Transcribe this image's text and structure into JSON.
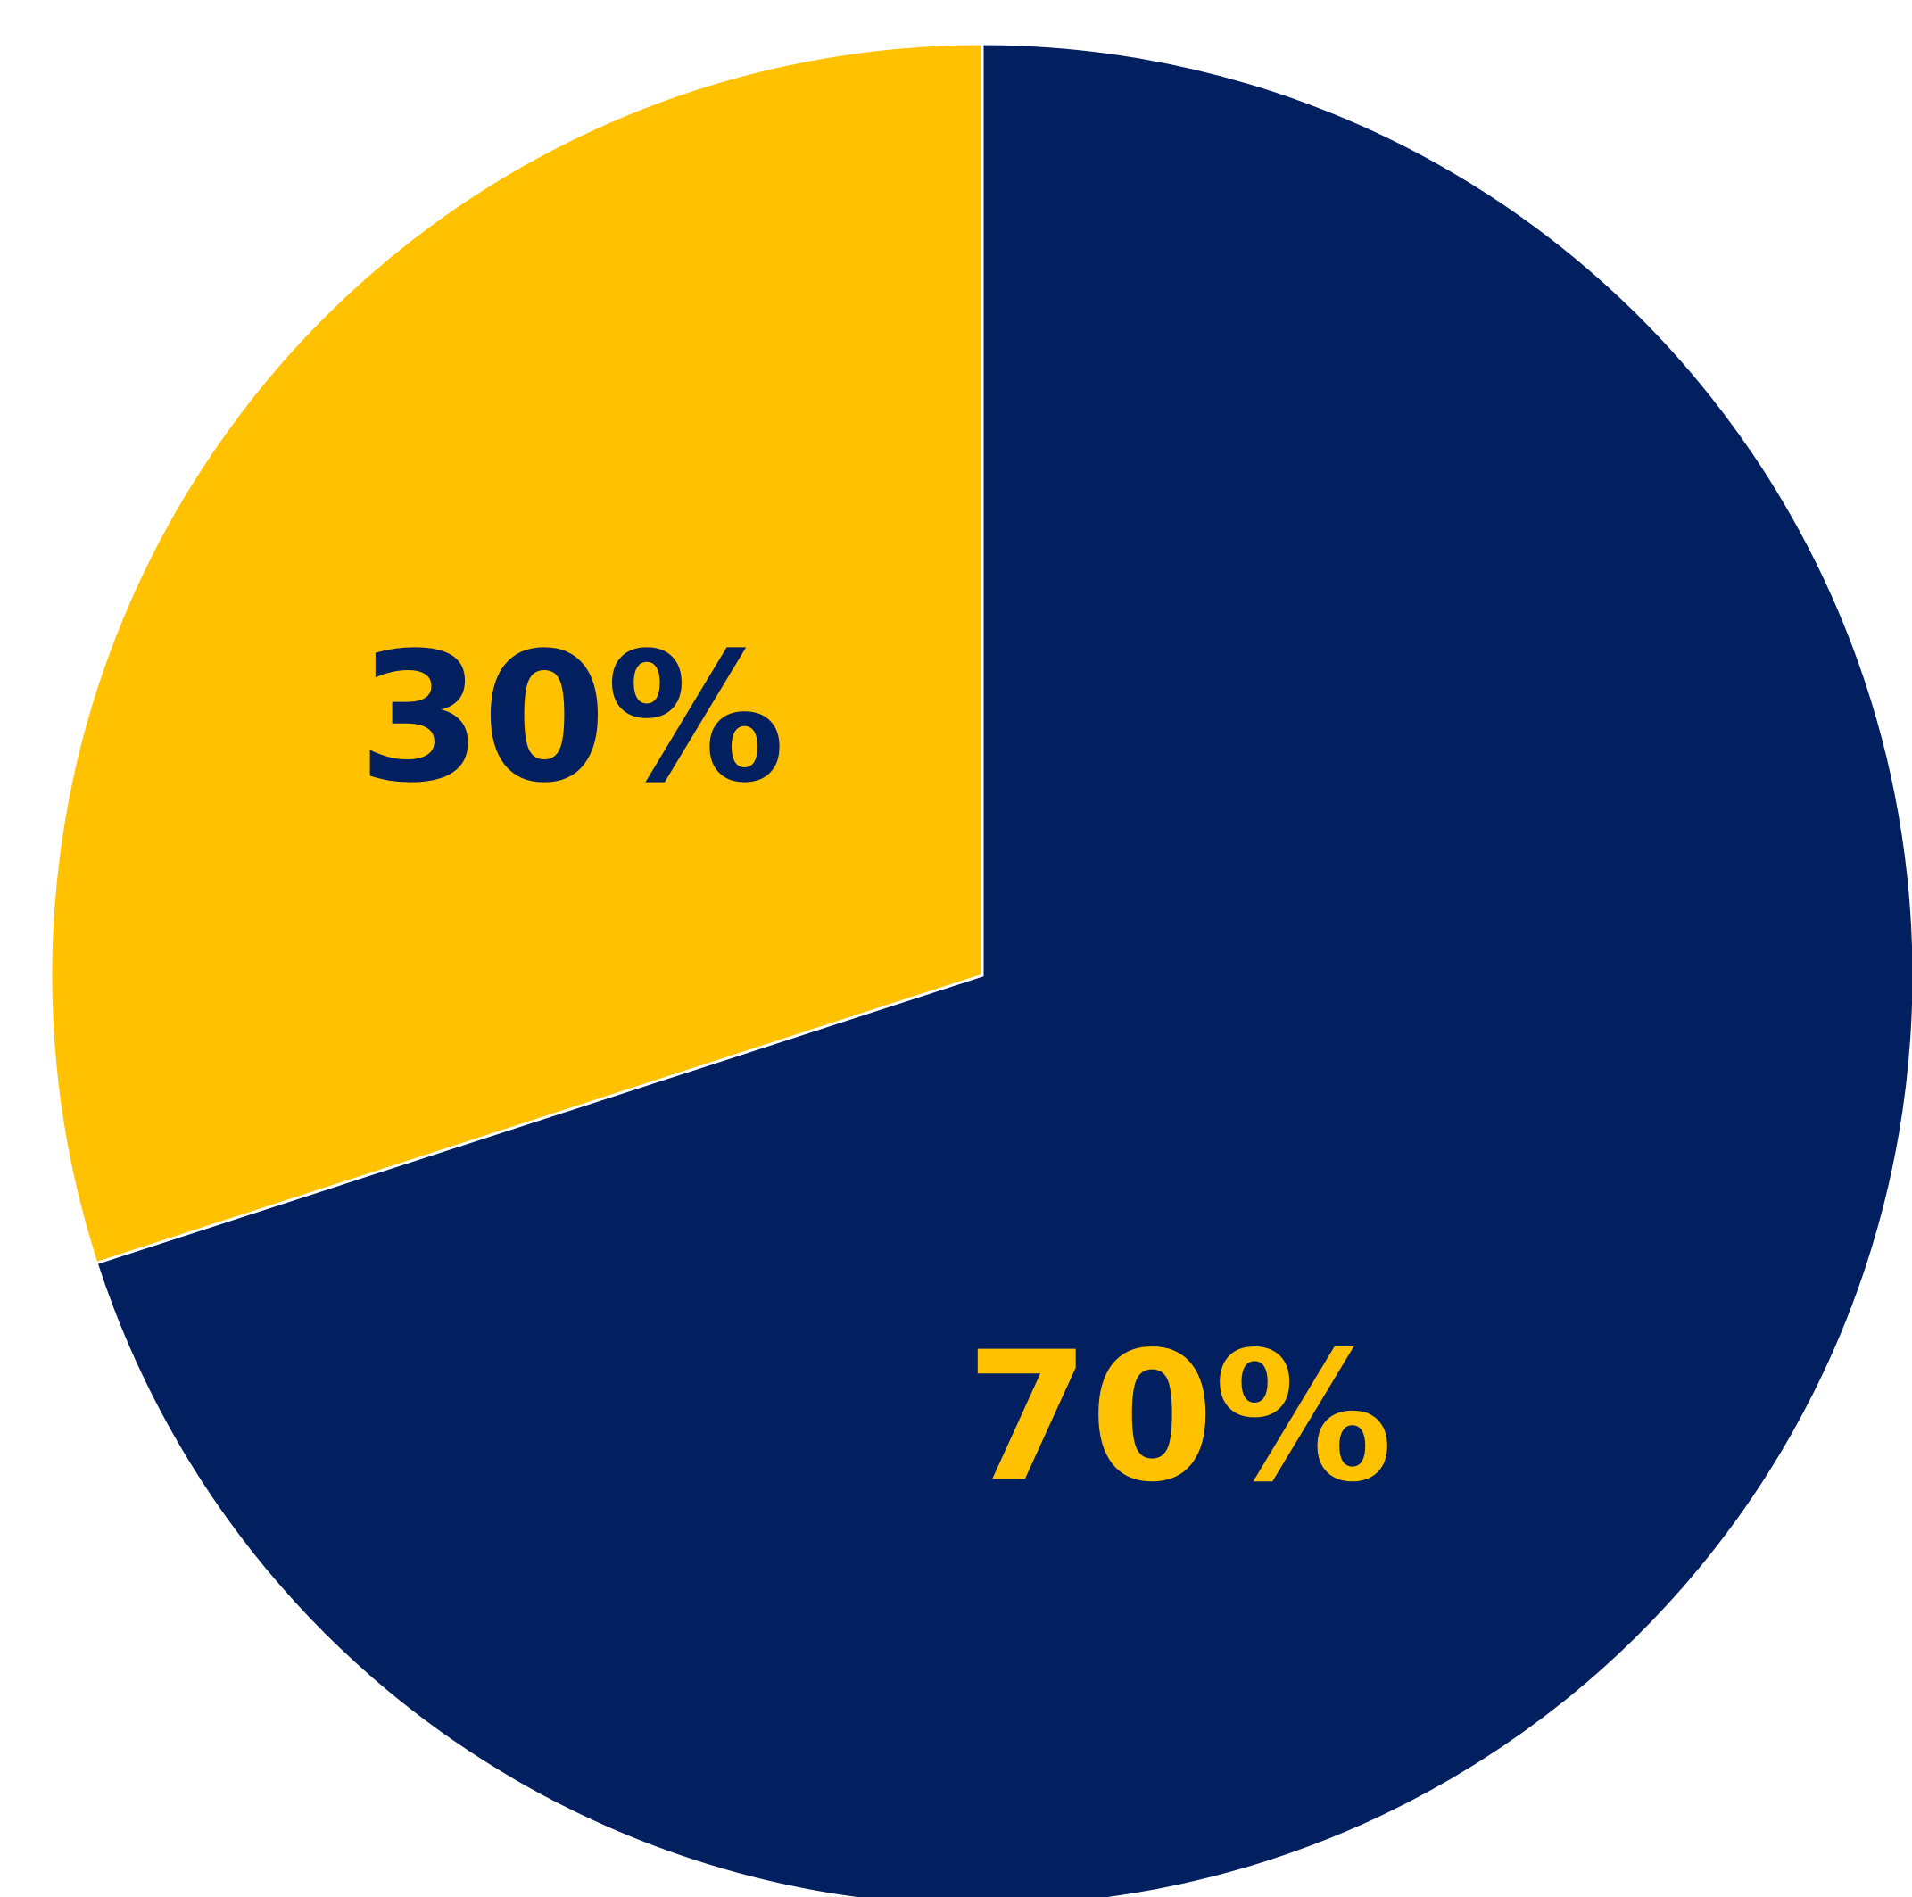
{
  "chart_data": {
    "type": "pie",
    "start_angle_deg": -90,
    "direction": "clockwise",
    "slices": [
      {
        "value": 70,
        "label": "70%",
        "color": "#022060",
        "label_color": "#FFC100"
      },
      {
        "value": 30,
        "label": "30%",
        "color": "#FFC100",
        "label_color": "#022060"
      }
    ]
  },
  "colors": {
    "navy": "#022060",
    "gold": "#FFC100",
    "separator": "#FFFFFF"
  }
}
